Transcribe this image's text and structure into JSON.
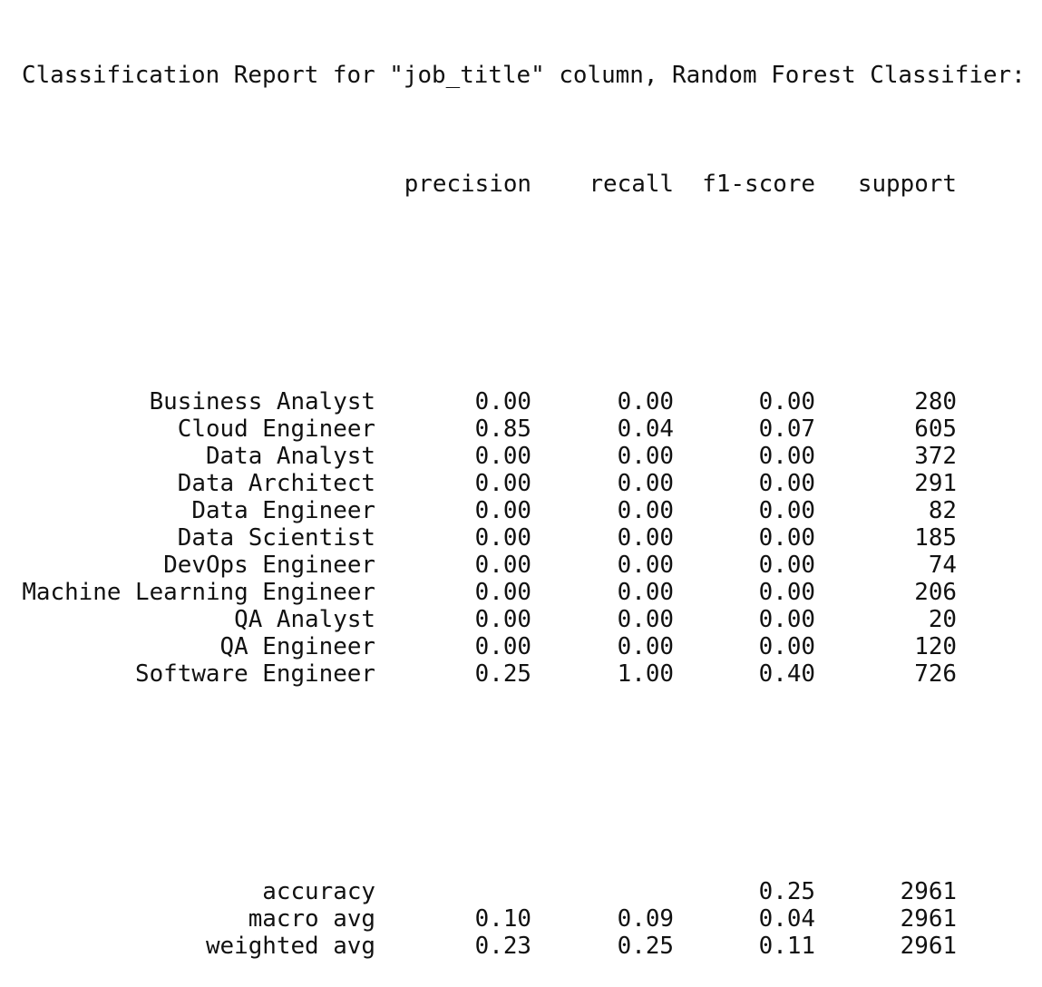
{
  "report": {
    "title": "Classification Report for \"job_title\" column, Random Forest Classifier:",
    "headers": {
      "precision": "precision",
      "recall": "recall",
      "f1": "f1-score",
      "support": "support"
    },
    "classes": [
      {
        "label": "Business Analyst",
        "precision": "0.00",
        "recall": "0.00",
        "f1": "0.00",
        "support": "280"
      },
      {
        "label": "Cloud Engineer",
        "precision": "0.85",
        "recall": "0.04",
        "f1": "0.07",
        "support": "605"
      },
      {
        "label": "Data Analyst",
        "precision": "0.00",
        "recall": "0.00",
        "f1": "0.00",
        "support": "372"
      },
      {
        "label": "Data Architect",
        "precision": "0.00",
        "recall": "0.00",
        "f1": "0.00",
        "support": "291"
      },
      {
        "label": "Data Engineer",
        "precision": "0.00",
        "recall": "0.00",
        "f1": "0.00",
        "support": "82"
      },
      {
        "label": "Data Scientist",
        "precision": "0.00",
        "recall": "0.00",
        "f1": "0.00",
        "support": "185"
      },
      {
        "label": "DevOps Engineer",
        "precision": "0.00",
        "recall": "0.00",
        "f1": "0.00",
        "support": "74"
      },
      {
        "label": "Machine Learning Engineer",
        "precision": "0.00",
        "recall": "0.00",
        "f1": "0.00",
        "support": "206"
      },
      {
        "label": "QA Analyst",
        "precision": "0.00",
        "recall": "0.00",
        "f1": "0.00",
        "support": "20"
      },
      {
        "label": "QA Engineer",
        "precision": "0.00",
        "recall": "0.00",
        "f1": "0.00",
        "support": "120"
      },
      {
        "label": "Software Engineer",
        "precision": "0.25",
        "recall": "1.00",
        "f1": "0.40",
        "support": "726"
      }
    ],
    "summary": [
      {
        "label": "accuracy",
        "precision": "",
        "recall": "",
        "f1": "0.25",
        "support": "2961"
      },
      {
        "label": "macro avg",
        "precision": "0.10",
        "recall": "0.09",
        "f1": "0.04",
        "support": "2961"
      },
      {
        "label": "weighted avg",
        "precision": "0.23",
        "recall": "0.25",
        "f1": "0.11",
        "support": "2961"
      }
    ]
  }
}
